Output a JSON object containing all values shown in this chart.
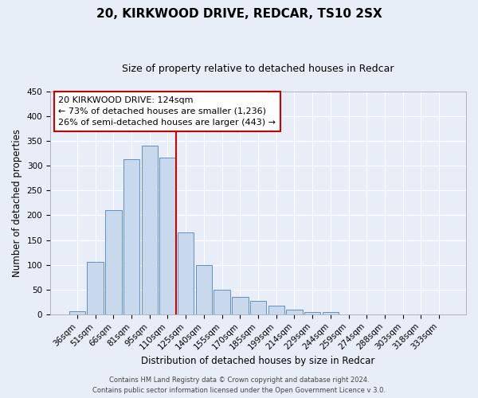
{
  "title": "20, KIRKWOOD DRIVE, REDCAR, TS10 2SX",
  "subtitle": "Size of property relative to detached houses in Redcar",
  "xlabel": "Distribution of detached houses by size in Redcar",
  "ylabel": "Number of detached properties",
  "bar_labels": [
    "36sqm",
    "51sqm",
    "66sqm",
    "81sqm",
    "95sqm",
    "110sqm",
    "125sqm",
    "140sqm",
    "155sqm",
    "170sqm",
    "185sqm",
    "199sqm",
    "214sqm",
    "229sqm",
    "244sqm",
    "259sqm",
    "274sqm",
    "288sqm",
    "303sqm",
    "318sqm",
    "333sqm"
  ],
  "bar_values": [
    7,
    106,
    210,
    313,
    340,
    317,
    165,
    100,
    50,
    35,
    27,
    18,
    10,
    5,
    4,
    0,
    0,
    0,
    0,
    0,
    0
  ],
  "bar_color": "#c8d9ed",
  "bar_edge_color": "#6090c0",
  "vline_color": "#cc0000",
  "ylim": [
    0,
    450
  ],
  "yticks": [
    0,
    50,
    100,
    150,
    200,
    250,
    300,
    350,
    400,
    450
  ],
  "annotation_title": "20 KIRKWOOD DRIVE: 124sqm",
  "annotation_line1": "← 73% of detached houses are smaller (1,236)",
  "annotation_line2": "26% of semi-detached houses are larger (443) →",
  "footer_line1": "Contains HM Land Registry data © Crown copyright and database right 2024.",
  "footer_line2": "Contains public sector information licensed under the Open Government Licence v 3.0.",
  "bg_color": "#e8eef8",
  "grid_color": "#ffffff",
  "annotation_box_color": "#ffffff",
  "annotation_box_edge": "#cc0000",
  "title_fontsize": 11,
  "subtitle_fontsize": 9,
  "axis_label_fontsize": 8.5,
  "tick_fontsize": 7.5,
  "annot_fontsize": 8,
  "footer_fontsize": 6
}
